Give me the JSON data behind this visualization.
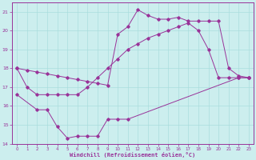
{
  "line1": {
    "x": [
      0,
      1,
      2,
      3,
      4,
      5,
      6,
      7,
      8,
      9,
      10,
      11,
      12,
      13,
      14,
      15,
      16,
      17,
      18,
      19,
      20,
      21,
      22,
      23
    ],
    "y": [
      18.0,
      17.9,
      17.8,
      17.7,
      17.6,
      17.5,
      17.4,
      17.3,
      17.2,
      17.1,
      19.8,
      20.2,
      21.1,
      20.8,
      20.6,
      20.6,
      20.7,
      20.5,
      20.5,
      20.5,
      20.5,
      18.0,
      17.6,
      17.5
    ]
  },
  "line2": {
    "x": [
      0,
      1,
      2,
      3,
      4,
      5,
      6,
      7,
      8,
      9,
      10,
      11,
      12,
      13,
      14,
      15,
      16,
      17,
      18,
      19,
      20,
      21,
      22,
      23
    ],
    "y": [
      18.0,
      17.0,
      16.6,
      16.6,
      16.6,
      16.6,
      16.6,
      17.0,
      17.5,
      18.0,
      18.5,
      19.0,
      19.3,
      19.6,
      19.8,
      20.0,
      20.2,
      20.4,
      20.0,
      19.0,
      17.5,
      17.5,
      17.5,
      17.5
    ]
  },
  "line3": {
    "x": [
      0,
      2,
      3,
      4,
      5,
      6,
      7,
      8,
      9,
      10,
      11,
      22,
      23
    ],
    "y": [
      16.6,
      15.8,
      15.8,
      14.9,
      14.3,
      14.4,
      14.4,
      14.4,
      15.3,
      15.3,
      15.3,
      17.5,
      17.5
    ]
  },
  "color": "#993399",
  "bg_color": "#cceeee",
  "grid_color": "#aadddd",
  "xlabel": "Windchill (Refroidissement éolien,°C)",
  "ylim": [
    14,
    21.5
  ],
  "xlim": [
    -0.5,
    23.5
  ],
  "yticks": [
    14,
    15,
    16,
    17,
    18,
    19,
    20,
    21
  ],
  "xticks": [
    0,
    1,
    2,
    3,
    4,
    5,
    6,
    7,
    8,
    9,
    10,
    11,
    12,
    13,
    14,
    15,
    16,
    17,
    18,
    19,
    20,
    21,
    22,
    23
  ]
}
